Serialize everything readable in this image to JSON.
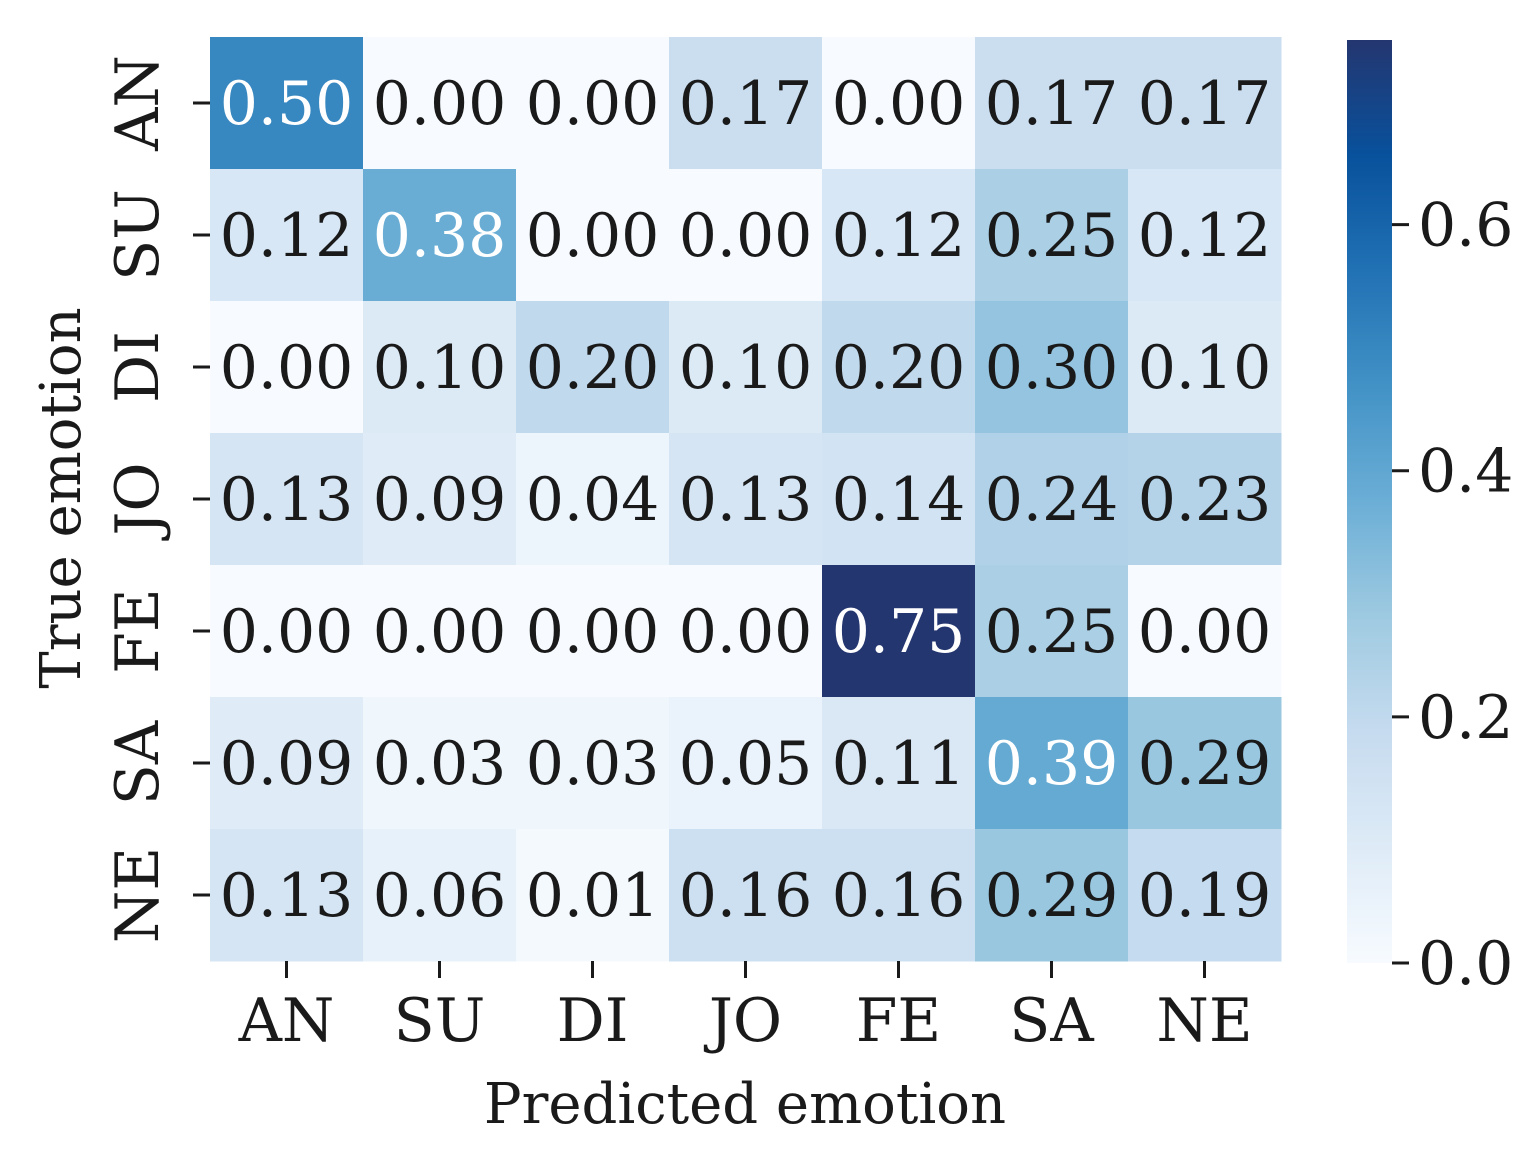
{
  "chart_data": {
    "type": "heatmap",
    "title": "",
    "xlabel": "Predicted emotion",
    "ylabel": "True emotion",
    "x_categories": [
      "AN",
      "SU",
      "DI",
      "JO",
      "FE",
      "SA",
      "NE"
    ],
    "y_categories": [
      "AN",
      "SU",
      "DI",
      "JO",
      "FE",
      "SA",
      "NE"
    ],
    "values": [
      [
        0.5,
        0.0,
        0.0,
        0.17,
        0.0,
        0.17,
        0.17
      ],
      [
        0.12,
        0.38,
        0.0,
        0.0,
        0.12,
        0.25,
        0.12
      ],
      [
        0.0,
        0.1,
        0.2,
        0.1,
        0.2,
        0.3,
        0.1
      ],
      [
        0.13,
        0.09,
        0.04,
        0.13,
        0.14,
        0.24,
        0.23
      ],
      [
        0.0,
        0.0,
        0.0,
        0.0,
        0.75,
        0.25,
        0.0
      ],
      [
        0.09,
        0.03,
        0.03,
        0.05,
        0.11,
        0.39,
        0.29
      ],
      [
        0.13,
        0.06,
        0.01,
        0.16,
        0.16,
        0.29,
        0.19
      ]
    ],
    "value_labels": [
      [
        "0.50",
        "0.00",
        "0.00",
        "0.17",
        "0.00",
        "0.17",
        "0.17"
      ],
      [
        "0.12",
        "0.38",
        "0.00",
        "0.00",
        "0.12",
        "0.25",
        "0.12"
      ],
      [
        "0.00",
        "0.10",
        "0.20",
        "0.10",
        "0.20",
        "0.30",
        "0.10"
      ],
      [
        "0.13",
        "0.09",
        "0.04",
        "0.13",
        "0.14",
        "0.24",
        "0.23"
      ],
      [
        "0.00",
        "0.00",
        "0.00",
        "0.00",
        "0.75",
        "0.25",
        "0.00"
      ],
      [
        "0.09",
        "0.03",
        "0.03",
        "0.05",
        "0.11",
        "0.39",
        "0.29"
      ],
      [
        "0.13",
        "0.06",
        "0.01",
        "0.16",
        "0.16",
        "0.29",
        "0.19"
      ]
    ],
    "colorbar": {
      "min": 0.0,
      "max": 0.75,
      "ticks": [
        0.0,
        0.2,
        0.4,
        0.6
      ],
      "tick_labels": [
        "0.0",
        "0.2",
        "0.4",
        "0.6"
      ],
      "colormap": "Blues",
      "colors": [
        "#f7fbff",
        "#deebf7",
        "#c6dbef",
        "#9ecae1",
        "#6baed6",
        "#4292c6",
        "#2171b5",
        "#08519c",
        "#243670"
      ]
    },
    "annotation_colors": {
      "dark_text": "#1a1a1a",
      "light_text": "#ffffff"
    },
    "grid": false
  }
}
